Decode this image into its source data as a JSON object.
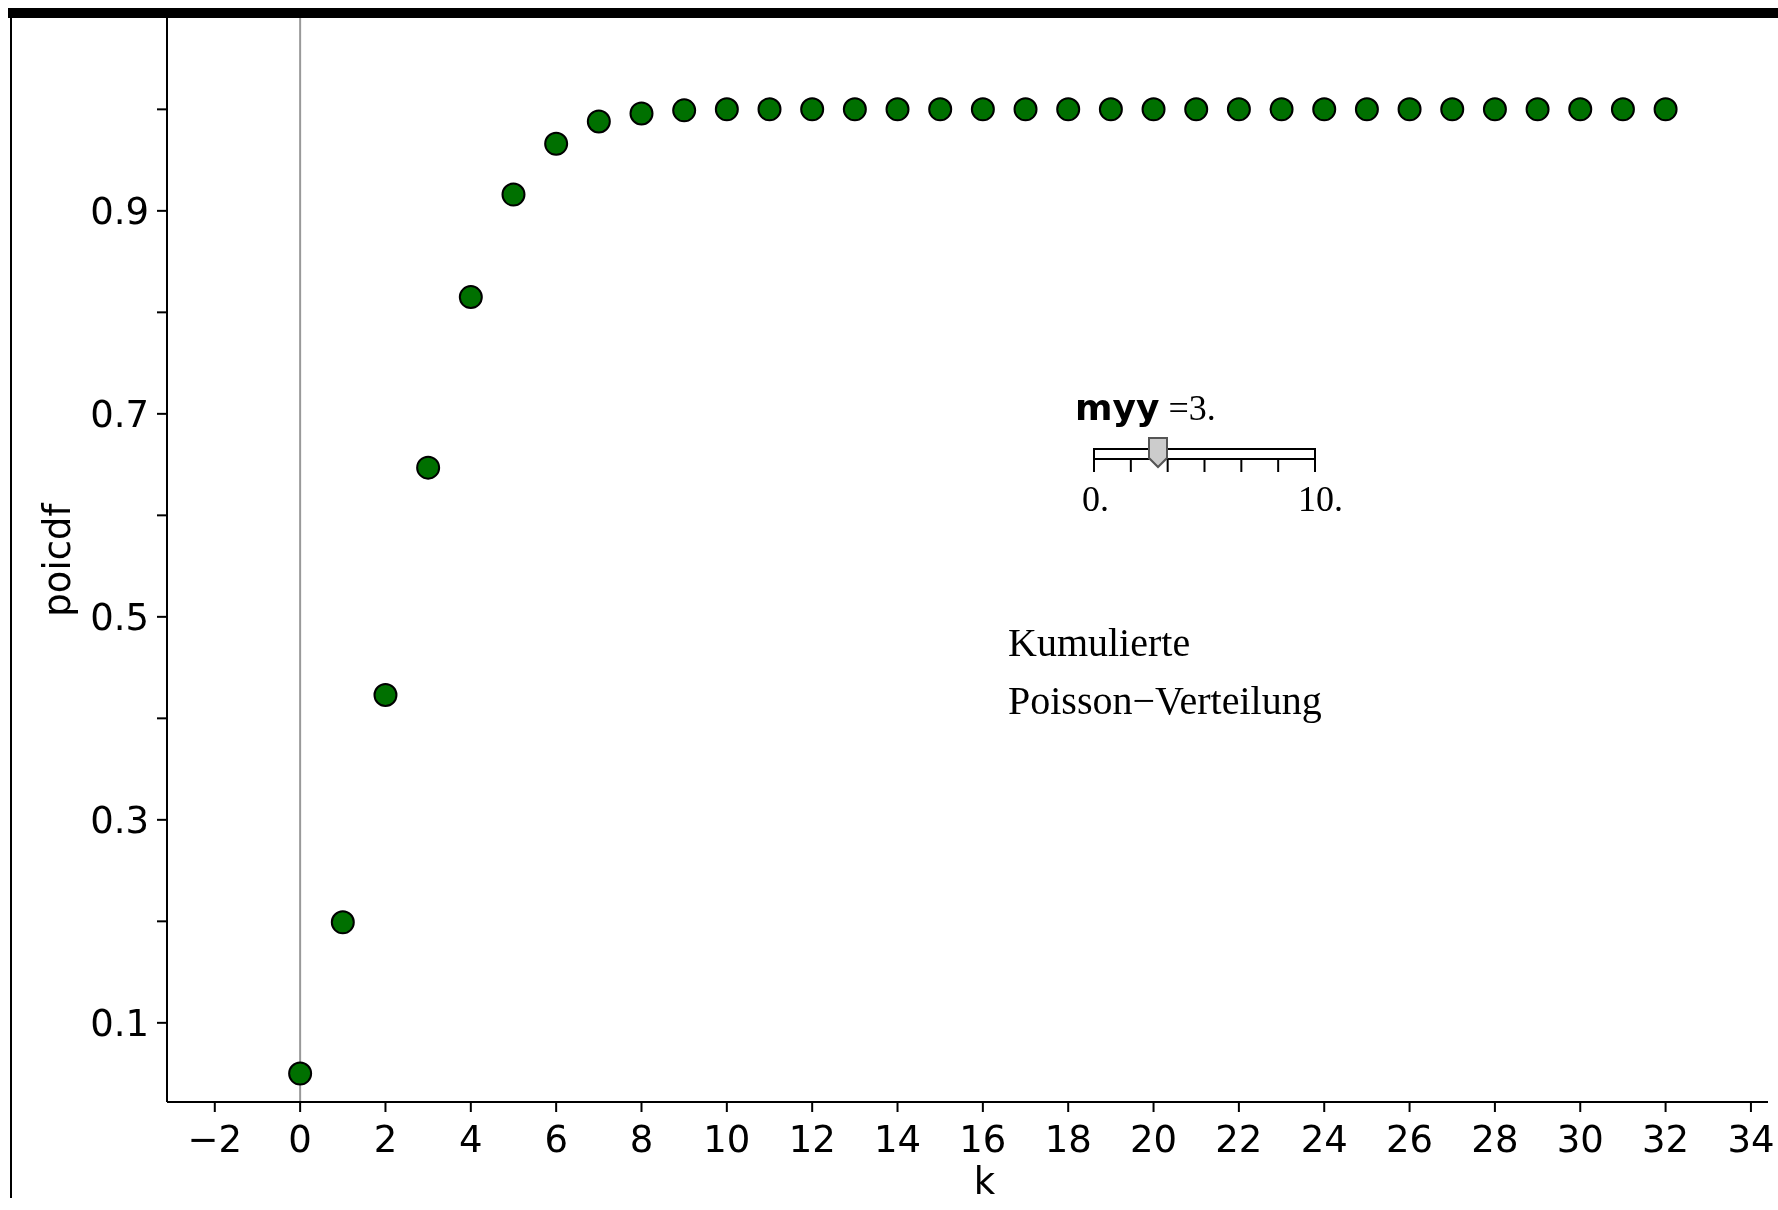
{
  "chart_data": {
    "type": "scatter",
    "xlabel": "k",
    "ylabel": "poicdf",
    "x": [
      0,
      1,
      2,
      3,
      4,
      5,
      6,
      7,
      8,
      9,
      10,
      11,
      12,
      13,
      14,
      15,
      16,
      17,
      18,
      19,
      20,
      21,
      22,
      23,
      24,
      25,
      26,
      27,
      28,
      29,
      30,
      31,
      32
    ],
    "series": [
      {
        "color": "#007000",
        "values": [
          0.05,
          0.199,
          0.423,
          0.647,
          0.815,
          0.916,
          0.966,
          0.988,
          0.996,
          0.999,
          1,
          1,
          1,
          1,
          1,
          1,
          1,
          1,
          1,
          1,
          1,
          1,
          1,
          1,
          1,
          1,
          1,
          1,
          1,
          1,
          1,
          1,
          1
        ]
      }
    ],
    "marker": "circle",
    "xlim": [
      -3.12,
      34.4
    ],
    "ylim": [
      0.022,
      1.09
    ],
    "xticks": [
      -2,
      0,
      2,
      4,
      6,
      8,
      10,
      12,
      14,
      16,
      18,
      20,
      22,
      24,
      26,
      28,
      30,
      32,
      34
    ],
    "yticks": [
      0.1,
      {
        "value": 0.2,
        "label": null
      },
      0.3,
      {
        "value": 0.4,
        "label": null
      },
      0.5,
      {
        "value": 0.6,
        "label": null
      },
      0.7,
      {
        "value": 0.8,
        "label": null
      },
      0.9,
      {
        "value": 1,
        "label": null
      }
    ],
    "ref_lines": [
      {
        "axis": "x",
        "value": 0,
        "color": "#999999"
      }
    ],
    "annotations": [
      "myy =3.",
      "0.",
      "10.",
      "Kumulierte Poisson−Verteilung"
    ],
    "grid": false
  }
}
